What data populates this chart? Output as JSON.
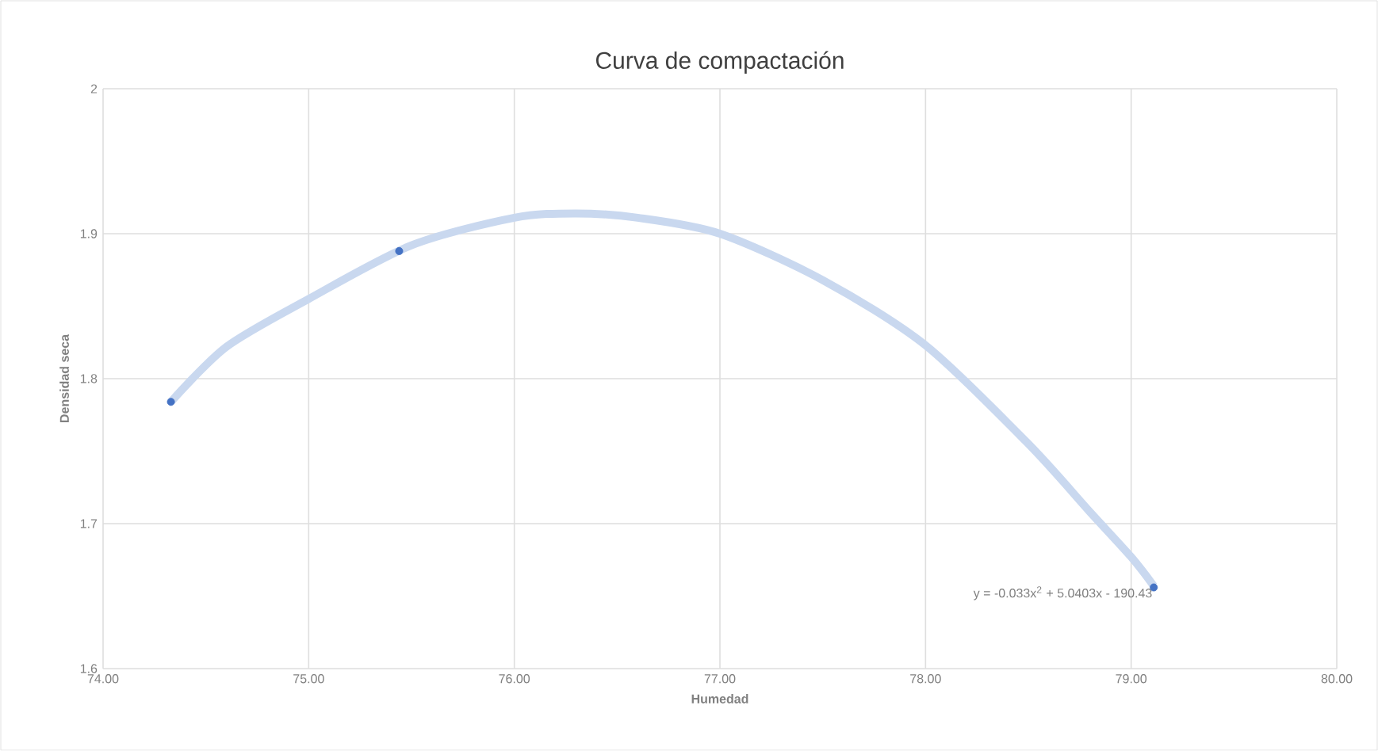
{
  "chart_data": {
    "type": "scatter",
    "title": "Curva de compactación",
    "xlabel": "Humedad",
    "ylabel": "Densidad seca",
    "xlim": [
      74,
      80
    ],
    "xticks": [
      {
        "value": 74,
        "label": "74.00"
      },
      {
        "value": 75,
        "label": "75.00"
      },
      {
        "value": 76,
        "label": "76.00"
      },
      {
        "value": 77,
        "label": "77.00"
      },
      {
        "value": 78,
        "label": "78.00"
      },
      {
        "value": 79,
        "label": "79.00"
      },
      {
        "value": 80,
        "label": "80.00"
      }
    ],
    "ylim": [
      1.6,
      2
    ],
    "yticks": [
      1.6,
      1.7,
      1.8,
      1.9,
      2
    ],
    "grid": true,
    "series": [
      {
        "type": "line",
        "color": "#c9d8ef",
        "marker": "none",
        "x": [
          74.33,
          74.6,
          75,
          75.5,
          76,
          76.3,
          76.6,
          77,
          77.5,
          78,
          78.5,
          78.8,
          79,
          79.11
        ],
        "values": [
          1.784,
          1.822,
          1.855,
          1.892,
          1.911,
          1.914,
          1.911,
          1.9,
          1.868,
          1.823,
          1.755,
          1.708,
          1.677,
          1.657
        ]
      },
      {
        "color": "#4472c4",
        "marker": "circle",
        "x": [
          74.33,
          75.44,
          79.11
        ],
        "values": [
          1.784,
          1.888,
          1.656
        ]
      }
    ],
    "annotations": [
      "y = -0.033x$^{2}$ + 5.0403x - 190.43"
    ]
  }
}
